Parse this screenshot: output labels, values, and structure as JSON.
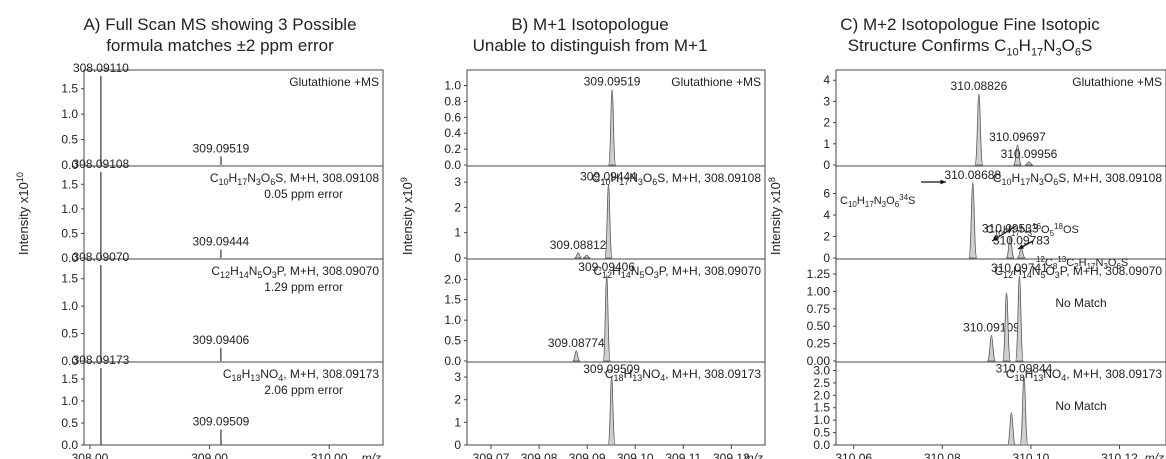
{
  "figure": {
    "titles": [
      {
        "line1": "A) Full Scan MS showing 3 Possible",
        "line2": "formula matches ±2 ppm error"
      },
      {
        "line1": "B) M+1 Isotopologue",
        "line2": "Unable to distinguish from M+1"
      },
      {
        "line1": "C) M+2 Isotopologue Fine Isotopic",
        "line2": "Structure Confirms C10H17N3O6S"
      }
    ],
    "y_labels": [
      "Intensity x10^10",
      "Intensity x10^9",
      "Intensity x10^8"
    ],
    "x_unit": "m/z"
  },
  "chart_data": [
    {
      "type": "line",
      "title": "A) Full Scan MS showing 3 Possible formula matches ±2 ppm error",
      "xlabel": "m/z",
      "ylabel": "Intensity x10^10",
      "xlim": [
        307.95,
        310.45
      ],
      "xticks": [
        308.0,
        309.0,
        310.0
      ],
      "xtick_labels": [
        "308.00",
        "309.00",
        "310.00"
      ],
      "subplots": [
        {
          "ylim": [
            0,
            1.75
          ],
          "yticks": [
            0.0,
            0.5,
            1.0,
            1.5
          ],
          "ytick_labels": [
            "0.0",
            "0.5",
            "1.0",
            "1.5"
          ],
          "corner_label": "Glutathione +MS",
          "peaks": [
            {
              "x": 308.0911,
              "y": 1.75,
              "label": "308.09110"
            },
            {
              "x": 309.09519,
              "y": 0.17,
              "label": "309.09519"
            }
          ]
        },
        {
          "ylim": [
            0,
            1.75
          ],
          "yticks": [
            0.0,
            0.5,
            1.0,
            1.5
          ],
          "ytick_labels": [
            "0.0",
            "0.5",
            "1.0",
            "1.5"
          ],
          "corner_label": "C10H17N3O6S, M+H, 308.09108",
          "sub_label": "0.05 ppm error",
          "peaks": [
            {
              "x": 308.09108,
              "y": 1.75,
              "label": "308.09108"
            },
            {
              "x": 309.09444,
              "y": 0.17,
              "label": "309.09444"
            }
          ]
        },
        {
          "ylim": [
            0,
            1.75
          ],
          "yticks": [
            0.0,
            0.5,
            1.0,
            1.5
          ],
          "ytick_labels": [
            "0.0",
            "0.5",
            "1.0",
            "1.5"
          ],
          "corner_label": "C12H14N5O3P, M+H, 308.09070",
          "sub_label": "1.29 ppm error",
          "peaks": [
            {
              "x": 308.0907,
              "y": 1.75,
              "label": "308.09070"
            },
            {
              "x": 309.09406,
              "y": 0.24,
              "label": "309.09406"
            }
          ]
        },
        {
          "ylim": [
            0,
            1.75
          ],
          "yticks": [
            0.0,
            0.5,
            1.0,
            1.5
          ],
          "ytick_labels": [
            "0.0",
            "0.5",
            "1.0",
            "1.5"
          ],
          "corner_label": "C18H13NO4, M+H, 308.09173",
          "sub_label": "2.06 ppm error",
          "peaks": [
            {
              "x": 308.09173,
              "y": 1.75,
              "label": "308.09173"
            },
            {
              "x": 309.09509,
              "y": 0.35,
              "label": "309.09509"
            }
          ]
        }
      ]
    },
    {
      "type": "area",
      "title": "B) M+1 Isotopologue Unable to distinguish from M+1",
      "xlabel": "m/z",
      "ylabel": "Intensity x10^9",
      "xlim": [
        309.065,
        309.127
      ],
      "xticks": [
        309.07,
        309.08,
        309.09,
        309.1,
        309.11,
        309.12
      ],
      "xtick_labels": [
        "309.07",
        "309.08",
        "309.09",
        "309.10",
        "309.11",
        "309.12"
      ],
      "subplots": [
        {
          "ylim": [
            0,
            1.12
          ],
          "yticks": [
            0.0,
            0.2,
            0.4,
            0.6,
            0.8,
            1.0
          ],
          "ytick_labels": [
            "0.0",
            "0.2",
            "0.4",
            "0.6",
            "0.8",
            "1.0"
          ],
          "corner_label": "Glutathione +MS",
          "peaks": [
            {
              "x": 309.09519,
              "y": 0.95,
              "label": "309.09519"
            }
          ]
        },
        {
          "ylim": [
            0,
            3.4
          ],
          "yticks": [
            0,
            1,
            2,
            3
          ],
          "ytick_labels": [
            "0",
            "1",
            "2",
            "3"
          ],
          "corner_label": "C10H17N3O6S, M+H, 308.09108",
          "peaks": [
            {
              "x": 309.08812,
              "y": 0.2,
              "label": "309.08812"
            },
            {
              "x": 309.0899,
              "y": 0.12,
              "label": ""
            },
            {
              "x": 309.09444,
              "y": 2.9,
              "label": "309.09444"
            }
          ]
        },
        {
          "ylim": [
            0,
            2.35
          ],
          "yticks": [
            0.0,
            0.5,
            1.0,
            1.5,
            2.0
          ],
          "ytick_labels": [
            "0.0",
            "0.5",
            "1.0",
            "1.5",
            "2.0"
          ],
          "corner_label": "C12H14N5O3P, M+H, 308.09070",
          "peaks": [
            {
              "x": 309.08774,
              "y": 0.25,
              "label": "309.08774"
            },
            {
              "x": 309.09406,
              "y": 2.1,
              "label": "309.09406"
            }
          ]
        },
        {
          "ylim": [
            0,
            3.4
          ],
          "yticks": [
            0,
            1,
            2,
            3
          ],
          "ytick_labels": [
            "0",
            "1",
            "2",
            "3"
          ],
          "corner_label": "C18H13NO4, M+H, 308.09173",
          "peaks": [
            {
              "x": 309.09509,
              "y": 3.0,
              "label": "309.09509"
            }
          ]
        }
      ]
    },
    {
      "type": "area",
      "title": "C) M+2 Isotopologue Fine Isotopic Structure Confirms C10H17N3O6S",
      "xlabel": "m/z",
      "ylabel": "Intensity x10^8",
      "xlim": [
        310.056,
        310.1305
      ],
      "xticks": [
        310.06,
        310.08,
        310.1,
        310.12
      ],
      "xtick_labels": [
        "310.06",
        "310.08",
        "310.10",
        "310.12"
      ],
      "subplots": [
        {
          "ylim": [
            0,
            4.2
          ],
          "yticks": [
            0,
            1,
            2,
            3,
            4
          ],
          "ytick_labels": [
            "0",
            "1",
            "2",
            "3",
            "4"
          ],
          "corner_label": "Glutathione +MS",
          "peaks": [
            {
              "x": 310.08826,
              "y": 3.35,
              "label": "310.08826"
            },
            {
              "x": 310.09697,
              "y": 0.95,
              "label": "310.09697"
            },
            {
              "x": 310.09956,
              "y": 0.15,
              "label": "310.09956"
            }
          ]
        },
        {
          "ylim": [
            0,
            8.0
          ],
          "yticks": [
            0,
            2,
            4,
            6
          ],
          "ytick_labels": [
            "0",
            "2",
            "4",
            "6"
          ],
          "corner_label": "C10H17N3O6S, M+H, 308.09108",
          "peaks": [
            {
              "x": 310.08688,
              "y": 7.0,
              "label": "310.08688"
            },
            {
              "x": 310.09533,
              "y": 2.0,
              "label": "310.09533"
            },
            {
              "x": 310.09783,
              "y": 0.9,
              "label": "310.09783"
            }
          ],
          "annotations": [
            "C10H17N3O6 34S",
            "C10H17N3 16O5 18OS",
            "12C8 13C2H17N3O6S"
          ]
        },
        {
          "ylim": [
            0,
            1.38
          ],
          "yticks": [
            0.0,
            0.25,
            0.5,
            0.75,
            1.0,
            1.25
          ],
          "ytick_labels": [
            "0.00",
            "0.25",
            "0.50",
            "0.75",
            "1.00",
            "1.25"
          ],
          "corner_label": "C12H14N5O3P, M+H, 308.09070",
          "sub_label": "No Match",
          "peaks": [
            {
              "x": 310.09109,
              "y": 0.37,
              "label": "310.09109"
            },
            {
              "x": 310.0945,
              "y": 0.98,
              "label": ""
            },
            {
              "x": 310.09741,
              "y": 1.22,
              "label": "310.09741"
            }
          ]
        },
        {
          "ylim": [
            0,
            3.1
          ],
          "yticks": [
            0.0,
            0.5,
            1.0,
            1.5,
            2.0,
            2.5,
            3.0
          ],
          "ytick_labels": [
            "0.0",
            "0.5",
            "1.0",
            "1.5",
            "2.0",
            "2.5",
            "3.0"
          ],
          "corner_label": "C18H13NO4, M+H, 308.09173",
          "sub_label": "No Match",
          "peaks": [
            {
              "x": 310.0956,
              "y": 1.3,
              "label": ""
            },
            {
              "x": 310.09844,
              "y": 2.75,
              "label": "310.09844"
            }
          ]
        }
      ]
    }
  ]
}
